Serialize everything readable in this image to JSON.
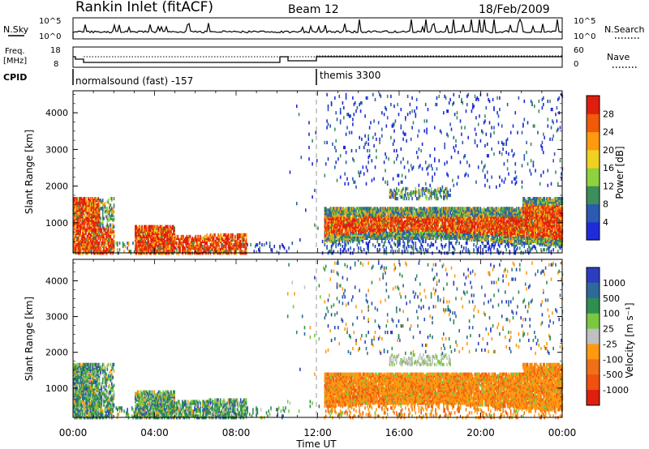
{
  "header": {
    "station": "Rankin Inlet (fitACF)",
    "beam": "Beam 12",
    "date": "18/Feb/2009"
  },
  "noise_panel": {
    "left_label": "N.Sky",
    "left_ticks": [
      "10^5",
      "10^0"
    ],
    "right_ticks": [
      "10^5",
      "10^0"
    ],
    "right_label": "N.Search"
  },
  "freq_panel": {
    "left_label_1": "Freq.",
    "left_label_2": "[MHz]",
    "left_ticks": [
      "18",
      "8"
    ],
    "right_ticks": [
      "60",
      "0"
    ],
    "right_label": "Nave"
  },
  "cpid": {
    "label": "CPID",
    "modes": [
      "normalsound (fast) -157",
      "themis 3300"
    ]
  },
  "chart_data": [
    {
      "type": "heatmap",
      "title": "Power",
      "ylabel": "Slant Range [km]",
      "y_ticks": [
        "1000",
        "2000",
        "3000",
        "4000"
      ],
      "ylim": [
        180,
        4600
      ],
      "xlim_hours": [
        0,
        24
      ],
      "colorbar": {
        "label": "Power [dB]",
        "ticks": [
          "4",
          "8",
          "12",
          "16",
          "20",
          "24",
          "28"
        ],
        "colors": [
          "#1f2bd8",
          "#2a5bb0",
          "#3c8f5a",
          "#8ed23f",
          "#f0d020",
          "#ff9a10",
          "#f05a08",
          "#e01e0e"
        ]
      },
      "features": [
        {
          "time_range": [
            0,
            1.3
          ],
          "range_km": [
            200,
            1800
          ],
          "level": "high"
        },
        {
          "time_range": [
            1.3,
            8.5
          ],
          "range_km": [
            200,
            800
          ],
          "level": "high"
        },
        {
          "time_range": [
            12.3,
            24
          ],
          "range_km": [
            500,
            1500
          ],
          "level": "high"
        },
        {
          "time_range": [
            12.3,
            24
          ],
          "range_km": [
            2000,
            4500
          ],
          "level": "sparse"
        }
      ]
    },
    {
      "type": "heatmap",
      "title": "Velocity",
      "ylabel": "Slant Range [km]",
      "y_ticks": [
        "1000",
        "2000",
        "3000",
        "4000"
      ],
      "ylim": [
        180,
        4600
      ],
      "xlim_hours": [
        0,
        24
      ],
      "colorbar": {
        "label": "Velocity [m s⁻¹]",
        "ticks": [
          "1000",
          "500",
          "100",
          "25",
          "-25",
          "-100",
          "-500",
          "-1000"
        ],
        "colors": [
          "#2c3ec0",
          "#2e6a98",
          "#2f8f50",
          "#78c840",
          "#c0c0c0",
          "#ff9a10",
          "#f07018",
          "#f05010",
          "#e01e0e"
        ]
      },
      "features": [
        {
          "time_range": [
            0,
            8.5
          ],
          "range_km": [
            200,
            1800
          ],
          "level": "mixed green/blue"
        },
        {
          "time_range": [
            12.3,
            24
          ],
          "range_km": [
            400,
            1500
          ],
          "level": "orange (negative)"
        },
        {
          "time_range": [
            16,
            18
          ],
          "range_km": [
            1600,
            2000
          ],
          "level": "grey"
        }
      ]
    }
  ],
  "x_axis": {
    "ticks": [
      "00:00",
      "04:00",
      "08:00",
      "12:00",
      "16:00",
      "20:00",
      "00:00"
    ],
    "label": "Time UT"
  }
}
